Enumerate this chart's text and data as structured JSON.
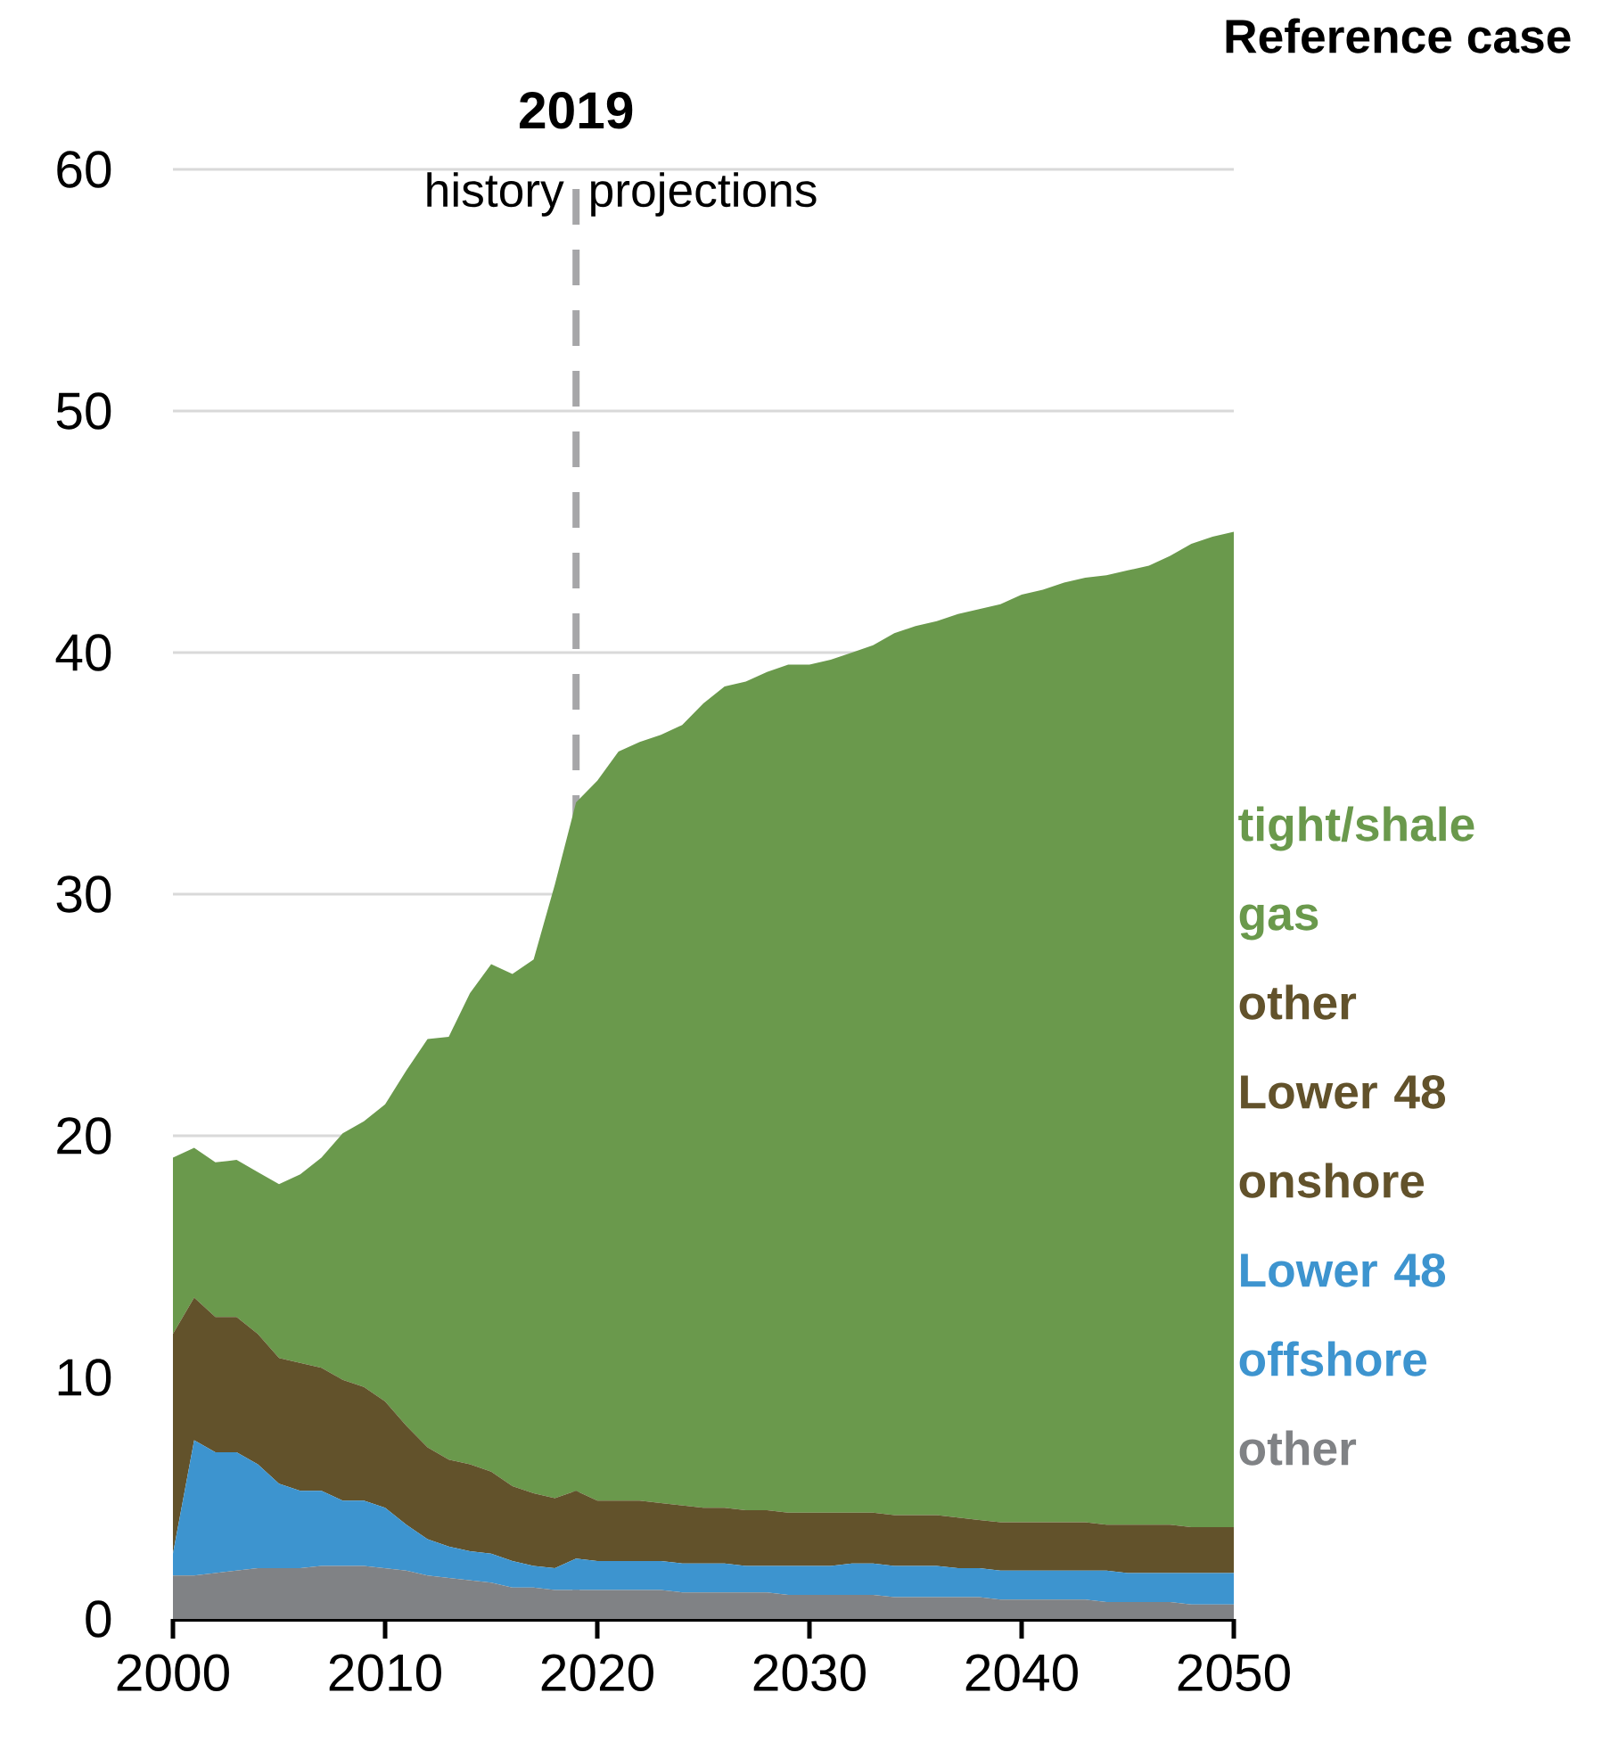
{
  "chart_data": {
    "type": "area",
    "title": "Reference case",
    "stacked": true,
    "x": [
      2000,
      2001,
      2002,
      2003,
      2004,
      2005,
      2006,
      2007,
      2008,
      2009,
      2010,
      2011,
      2012,
      2013,
      2014,
      2015,
      2016,
      2017,
      2018,
      2019,
      2020,
      2021,
      2022,
      2023,
      2024,
      2025,
      2026,
      2027,
      2028,
      2029,
      2030,
      2031,
      2032,
      2033,
      2034,
      2035,
      2036,
      2037,
      2038,
      2039,
      2040,
      2041,
      2042,
      2043,
      2044,
      2045,
      2046,
      2047,
      2048,
      2049,
      2050
    ],
    "series": [
      {
        "name": "other",
        "color": "#808285",
        "values": [
          1.8,
          1.8,
          1.9,
          2.0,
          2.1,
          2.1,
          2.1,
          2.2,
          2.2,
          2.2,
          2.1,
          2.0,
          1.8,
          1.7,
          1.6,
          1.5,
          1.3,
          1.3,
          1.2,
          1.2,
          1.2,
          1.2,
          1.2,
          1.2,
          1.1,
          1.1,
          1.1,
          1.1,
          1.1,
          1.0,
          1.0,
          1.0,
          1.0,
          1.0,
          0.9,
          0.9,
          0.9,
          0.9,
          0.9,
          0.8,
          0.8,
          0.8,
          0.8,
          0.8,
          0.7,
          0.7,
          0.7,
          0.7,
          0.6,
          0.6,
          0.6
        ]
      },
      {
        "name": "Lower 48 offshore",
        "color": "#3d94cf",
        "values": [
          0.9,
          5.6,
          5.0,
          4.9,
          4.3,
          3.5,
          3.2,
          3.1,
          2.7,
          2.7,
          2.5,
          1.9,
          1.5,
          1.3,
          1.2,
          1.2,
          1.1,
          0.9,
          0.9,
          1.3,
          1.2,
          1.2,
          1.2,
          1.2,
          1.2,
          1.2,
          1.2,
          1.1,
          1.1,
          1.2,
          1.2,
          1.2,
          1.3,
          1.3,
          1.3,
          1.3,
          1.3,
          1.2,
          1.2,
          1.2,
          1.2,
          1.2,
          1.2,
          1.2,
          1.3,
          1.2,
          1.2,
          1.2,
          1.3,
          1.3,
          1.3
        ]
      },
      {
        "name": "other Lower 48 onshore",
        "color": "#62522b",
        "values": [
          9.1,
          5.9,
          5.6,
          5.6,
          5.4,
          5.2,
          5.3,
          5.1,
          5.0,
          4.7,
          4.4,
          4.1,
          3.8,
          3.6,
          3.6,
          3.4,
          3.1,
          3.0,
          2.9,
          2.8,
          2.5,
          2.5,
          2.5,
          2.4,
          2.4,
          2.3,
          2.3,
          2.3,
          2.3,
          2.2,
          2.2,
          2.2,
          2.1,
          2.1,
          2.1,
          2.1,
          2.1,
          2.1,
          2.0,
          2.0,
          2.0,
          2.0,
          2.0,
          2.0,
          1.9,
          2.0,
          2.0,
          2.0,
          1.9,
          1.9,
          1.9
        ]
      },
      {
        "name": "tight/shale gas",
        "color": "#6a994c",
        "values": [
          7.3,
          6.2,
          6.4,
          6.5,
          6.7,
          7.2,
          7.8,
          8.7,
          10.2,
          11.0,
          12.3,
          14.7,
          16.9,
          17.5,
          19.5,
          21.0,
          21.2,
          22.1,
          25.4,
          28.5,
          29.8,
          31.0,
          31.4,
          31.8,
          32.3,
          33.3,
          34.0,
          34.3,
          34.7,
          35.1,
          35.1,
          35.3,
          35.6,
          35.9,
          36.5,
          36.8,
          37.0,
          37.4,
          37.7,
          38.0,
          38.4,
          38.6,
          38.9,
          39.1,
          39.3,
          39.5,
          39.7,
          40.1,
          40.7,
          41.0,
          41.2
        ]
      }
    ],
    "xlim": [
      2000,
      2050
    ],
    "xticks": [
      2000,
      2010,
      2020,
      2030,
      2040,
      2050
    ],
    "ylim": [
      0,
      60
    ],
    "yticks": [
      0,
      10,
      20,
      30,
      40,
      50,
      60
    ],
    "grid": "y",
    "ref_lines": [
      {
        "axis": "x",
        "value": 2019,
        "label": "2019",
        "color": "#a6a6a8",
        "line_style": "dashed"
      }
    ],
    "annotations": [
      "history",
      "projections"
    ]
  }
}
